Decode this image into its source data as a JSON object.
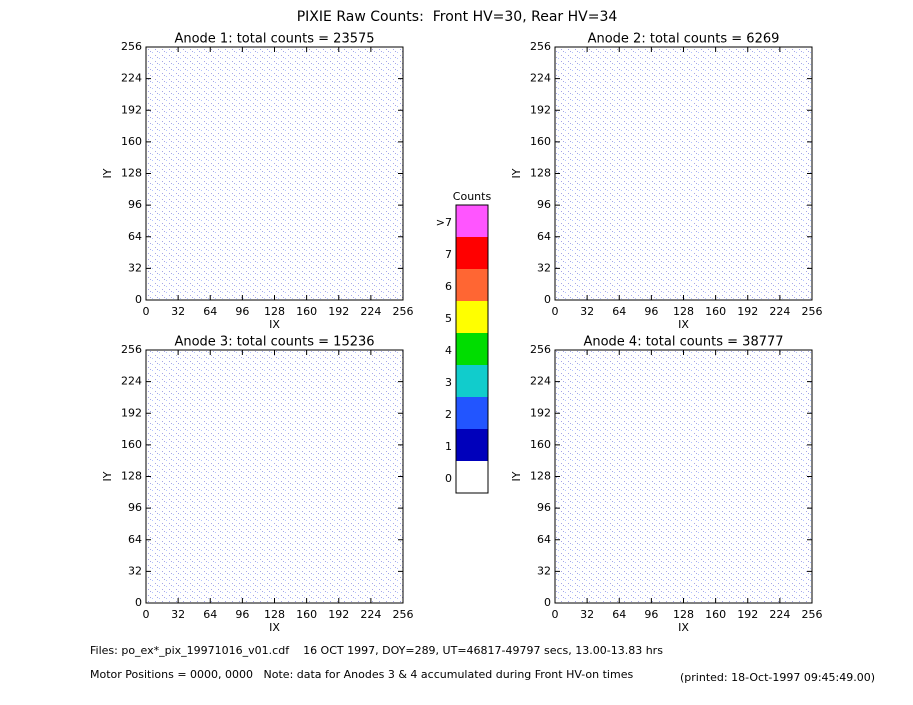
{
  "title": "PIXIE Raw Counts:  Front HV=30, Rear HV=34",
  "chart_data": [
    {
      "type": "heatmap",
      "title": "Anode 1: total counts = 23575",
      "x_label": "IX",
      "y_label": "IY",
      "xlim": [
        0,
        256
      ],
      "ylim": [
        0,
        256
      ],
      "xticks": [
        0,
        32,
        64,
        96,
        128,
        160,
        192,
        224,
        256
      ],
      "yticks": [
        0,
        32,
        64,
        96,
        128,
        160,
        192,
        224,
        256
      ]
    },
    {
      "type": "heatmap",
      "title": "Anode 2: total counts = 6269",
      "x_label": "IX",
      "y_label": "IY",
      "xlim": [
        0,
        256
      ],
      "ylim": [
        0,
        256
      ],
      "xticks": [
        0,
        32,
        64,
        96,
        128,
        160,
        192,
        224,
        256
      ],
      "yticks": [
        0,
        32,
        64,
        96,
        128,
        160,
        192,
        224,
        256
      ]
    },
    {
      "type": "heatmap",
      "title": "Anode 3: total counts = 15236",
      "x_label": "IX",
      "y_label": "IY",
      "xlim": [
        0,
        256
      ],
      "ylim": [
        0,
        256
      ],
      "xticks": [
        0,
        32,
        64,
        96,
        128,
        160,
        192,
        224,
        256
      ],
      "yticks": [
        0,
        32,
        64,
        96,
        128,
        160,
        192,
        224,
        256
      ]
    },
    {
      "type": "heatmap",
      "title": "Anode 4: total counts = 38777",
      "x_label": "IX",
      "y_label": "IY",
      "xlim": [
        0,
        256
      ],
      "ylim": [
        0,
        256
      ],
      "xticks": [
        0,
        32,
        64,
        96,
        128,
        160,
        192,
        224,
        256
      ],
      "yticks": [
        0,
        32,
        64,
        96,
        128,
        160,
        192,
        224,
        256
      ]
    }
  ],
  "colorbar": {
    "title": "Counts",
    "levels": [
      0,
      1,
      2,
      3,
      4,
      5,
      6,
      7,
      ">7"
    ],
    "colors": [
      "#ffffff",
      "#0000bb",
      "#2255ff",
      "#11cccc",
      "#00dd00",
      "#ffff00",
      "#ff6633",
      "#ff0000",
      "#ff55ff"
    ]
  },
  "footer": {
    "files": "Files: po_ex*_pix_19971016_v01.cdf    16 OCT 1997, DOY=289, UT=46817-49797 secs, 13.00-13.83 hrs",
    "motor": "Motor Positions = 0000, 0000   Note: data for Anodes 3 & 4 accumulated during Front HV-on times",
    "printed": "(printed: 18-Oct-1997 09:45:49.00)"
  }
}
